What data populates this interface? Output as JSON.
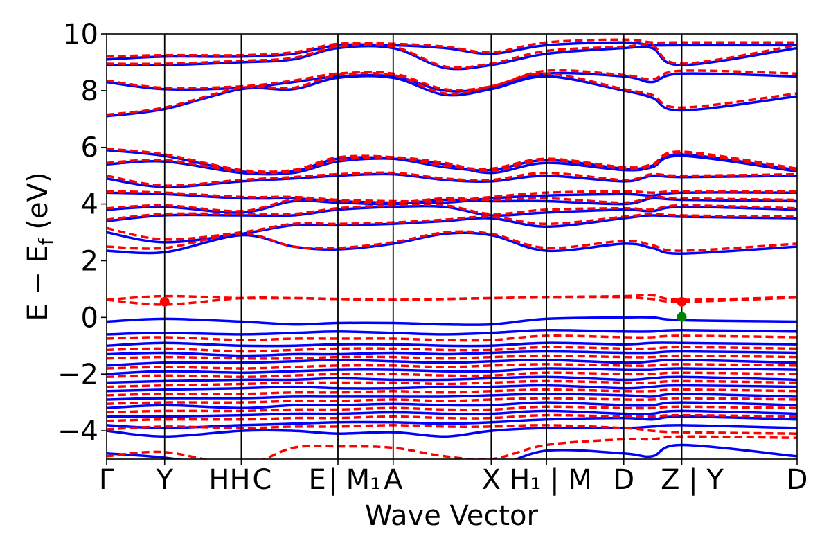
{
  "chart_data": {
    "type": "line",
    "xlabel": "Wave Vector",
    "ylabel_main": "E − E",
    "ylabel_sub": "f",
    "ylabel_unit": " (eV)",
    "ylim": [
      -5,
      10
    ],
    "yticks": [
      10,
      8,
      6,
      4,
      2,
      0,
      -2,
      -4
    ],
    "ytick_labels": [
      "10",
      "8",
      "6",
      "4",
      "2",
      "0",
      "−2",
      "−4"
    ],
    "grid": false,
    "kpath": [
      {
        "label": "Γ",
        "pos": 0.0
      },
      {
        "label": "Y",
        "pos": 0.084
      },
      {
        "label": "H|H",
        "pos": 0.195
      },
      {
        "label": "C",
        "pos": 0.195
      },
      {
        "label": "E|E",
        "pos": 0.335
      },
      {
        "label": "M1",
        "pos": 0.335
      },
      {
        "label": "A",
        "pos": 0.415
      },
      {
        "label": "X",
        "pos": 0.557
      },
      {
        "label": "H1|M",
        "pos": 0.637
      },
      {
        "label": "D",
        "pos": 0.749
      },
      {
        "label": "Z|Y",
        "pos": 0.833
      },
      {
        "label": "D",
        "pos": 1.0
      }
    ],
    "xtick_labels": [
      {
        "text": "Γ",
        "pos": 0.0
      },
      {
        "text": "Y",
        "pos": 0.084
      },
      {
        "text": "HH",
        "pos": 0.178
      },
      {
        "text": "C",
        "pos": 0.225
      },
      {
        "text": "E",
        "pos": 0.305
      },
      {
        "text": "|",
        "pos": 0.328
      },
      {
        "text": "M₁",
        "pos": 0.372
      },
      {
        "text": "A",
        "pos": 0.415
      },
      {
        "text": "X",
        "pos": 0.557
      },
      {
        "text": "H₁ | M",
        "pos": 0.643
      },
      {
        "text": "D",
        "pos": 0.749
      },
      {
        "text": "Z | Y",
        "pos": 0.848
      },
      {
        "text": "D",
        "pos": 1.0
      }
    ],
    "series": [
      {
        "style": "solid",
        "color": "#0000ff",
        "bands": [
          [
            -0.15,
            -0.05,
            -0.15,
            -0.25,
            -0.2,
            -0.2,
            -0.25,
            -0.25,
            -0.05,
            0.0,
            0.0,
            -0.1,
            -0.15
          ],
          [
            -0.6,
            -0.55,
            -0.6,
            -0.55,
            -0.5,
            -0.55,
            -0.6,
            -0.55,
            -0.45,
            -0.5,
            -0.5,
            -0.45,
            -0.5
          ],
          [
            -1.0,
            -0.9,
            -1.0,
            -1.0,
            -0.95,
            -0.95,
            -1.0,
            -1.0,
            -0.9,
            -0.95,
            -0.9,
            -0.9,
            -0.95
          ],
          [
            -1.3,
            -1.25,
            -1.35,
            -1.3,
            -1.3,
            -1.25,
            -1.3,
            -1.25,
            -1.2,
            -1.25,
            -1.25,
            -1.2,
            -1.25
          ],
          [
            -1.7,
            -1.6,
            -1.6,
            -1.55,
            -1.5,
            -1.55,
            -1.6,
            -1.55,
            -1.5,
            -1.6,
            -1.55,
            -1.5,
            -1.6
          ],
          [
            -2.0,
            -1.9,
            -1.95,
            -1.9,
            -1.85,
            -1.85,
            -1.9,
            -1.9,
            -1.8,
            -1.85,
            -1.85,
            -1.8,
            -1.85
          ],
          [
            -2.3,
            -2.25,
            -2.2,
            -2.2,
            -2.15,
            -2.2,
            -2.2,
            -2.15,
            -2.1,
            -2.2,
            -2.15,
            -2.1,
            -2.2
          ],
          [
            -2.6,
            -2.55,
            -2.5,
            -2.45,
            -2.5,
            -2.5,
            -2.45,
            -2.45,
            -2.4,
            -2.5,
            -2.45,
            -2.4,
            -2.45
          ],
          [
            -2.9,
            -2.85,
            -2.85,
            -2.8,
            -2.8,
            -2.8,
            -2.8,
            -2.75,
            -2.7,
            -2.75,
            -2.8,
            -2.7,
            -2.8
          ],
          [
            -3.2,
            -3.1,
            -3.2,
            -3.1,
            -3.1,
            -3.05,
            -3.1,
            -3.1,
            -3.0,
            -3.1,
            -3.1,
            -3.0,
            -3.1
          ],
          [
            -3.5,
            -3.5,
            -3.45,
            -3.4,
            -3.4,
            -3.35,
            -3.4,
            -3.4,
            -3.3,
            -3.4,
            -3.4,
            -3.3,
            -3.4
          ],
          [
            -3.8,
            -3.9,
            -3.8,
            -3.75,
            -3.7,
            -3.7,
            -3.75,
            -3.7,
            -3.6,
            -3.55,
            -3.6,
            -3.5,
            -3.6
          ],
          [
            -4.0,
            -4.2,
            -4.0,
            -4.0,
            -4.1,
            -4.05,
            -4.2,
            -4.0,
            -3.9,
            -3.9,
            -3.85,
            -3.8,
            -3.9
          ],
          [
            -4.8,
            -4.95,
            -5.3,
            -5.2,
            -5.1,
            -5.2,
            -5.25,
            -5.3,
            -4.7,
            -4.8,
            -4.9,
            -4.5,
            -4.9
          ],
          [
            2.35,
            2.3,
            2.9,
            2.5,
            2.4,
            2.6,
            2.95,
            2.9,
            2.35,
            2.6,
            2.45,
            2.25,
            2.5
          ],
          [
            3.0,
            2.65,
            2.95,
            3.25,
            3.25,
            3.3,
            3.4,
            3.5,
            3.2,
            3.5,
            3.6,
            3.55,
            3.5
          ],
          [
            3.4,
            3.6,
            3.6,
            3.6,
            3.8,
            3.9,
            3.9,
            3.6,
            3.7,
            3.8,
            3.75,
            3.9,
            3.8
          ],
          [
            3.8,
            3.9,
            3.7,
            4.1,
            4.05,
            4.0,
            4.15,
            4.1,
            4.1,
            4.0,
            4.2,
            4.15,
            4.1
          ],
          [
            4.4,
            4.35,
            4.2,
            4.2,
            4.1,
            4.05,
            4.05,
            4.2,
            4.3,
            4.35,
            4.3,
            4.4,
            4.4
          ],
          [
            4.9,
            4.6,
            4.8,
            4.9,
            5.0,
            5.05,
            4.85,
            4.8,
            5.0,
            4.8,
            5.0,
            4.95,
            5.0
          ],
          [
            5.4,
            5.5,
            5.1,
            5.1,
            5.5,
            5.6,
            5.4,
            5.1,
            5.45,
            5.2,
            5.3,
            5.7,
            5.15
          ],
          [
            5.9,
            5.7,
            5.15,
            5.15,
            5.6,
            5.6,
            5.3,
            5.2,
            5.55,
            5.25,
            5.35,
            5.75,
            5.2
          ],
          [
            7.1,
            7.35,
            8.05,
            8.05,
            8.45,
            8.45,
            7.85,
            8.05,
            8.5,
            8.0,
            7.75,
            7.3,
            7.8
          ],
          [
            8.3,
            8.05,
            8.1,
            8.3,
            8.5,
            8.5,
            8.0,
            8.1,
            8.6,
            8.5,
            8.3,
            8.6,
            8.5
          ],
          [
            8.9,
            8.9,
            9.0,
            9.1,
            9.5,
            9.5,
            8.8,
            8.9,
            9.3,
            9.5,
            9.5,
            8.9,
            9.5
          ],
          [
            9.1,
            9.2,
            9.2,
            9.3,
            9.6,
            9.6,
            9.5,
            9.3,
            9.6,
            9.7,
            9.6,
            9.6,
            9.6
          ]
        ]
      },
      {
        "style": "dashed",
        "color": "#ff0000",
        "bands": [
          [
            0.62,
            0.75,
            0.68,
            0.68,
            0.65,
            0.62,
            0.65,
            0.68,
            0.72,
            0.75,
            0.78,
            0.62,
            0.72
          ],
          [
            0.62,
            0.45,
            0.68,
            0.68,
            0.65,
            0.62,
            0.65,
            0.68,
            0.7,
            0.7,
            0.65,
            0.55,
            0.7
          ],
          [
            -0.75,
            -0.7,
            -0.8,
            -0.75,
            -0.75,
            -0.75,
            -0.8,
            -0.8,
            -0.65,
            -0.7,
            -0.7,
            -0.65,
            -0.7
          ],
          [
            -1.15,
            -1.1,
            -1.2,
            -1.15,
            -1.1,
            -1.1,
            -1.15,
            -1.15,
            -1.05,
            -1.1,
            -1.1,
            -1.05,
            -1.1
          ],
          [
            -1.45,
            -1.4,
            -1.45,
            -1.45,
            -1.4,
            -1.4,
            -1.45,
            -1.4,
            -1.35,
            -1.4,
            -1.4,
            -1.35,
            -1.4
          ],
          [
            -1.8,
            -1.75,
            -1.8,
            -1.75,
            -1.7,
            -1.7,
            -1.75,
            -1.7,
            -1.65,
            -1.7,
            -1.7,
            -1.65,
            -1.7
          ],
          [
            -2.1,
            -2.05,
            -2.1,
            -2.05,
            -2.0,
            -2.0,
            -2.05,
            -2.05,
            -1.95,
            -2.0,
            -2.0,
            -1.95,
            -2.0
          ],
          [
            -2.45,
            -2.4,
            -2.35,
            -2.3,
            -2.3,
            -2.3,
            -2.35,
            -2.3,
            -2.25,
            -2.3,
            -2.3,
            -2.25,
            -2.3
          ],
          [
            -2.75,
            -2.7,
            -2.7,
            -2.65,
            -2.65,
            -2.6,
            -2.65,
            -2.6,
            -2.55,
            -2.6,
            -2.6,
            -2.55,
            -2.6
          ],
          [
            -3.05,
            -3.0,
            -3.0,
            -2.95,
            -2.95,
            -2.9,
            -2.95,
            -2.9,
            -2.85,
            -2.9,
            -2.9,
            -2.85,
            -2.9
          ],
          [
            -3.35,
            -3.3,
            -3.3,
            -3.25,
            -3.25,
            -3.2,
            -3.25,
            -3.25,
            -3.15,
            -3.2,
            -3.2,
            -3.15,
            -3.2
          ],
          [
            -3.65,
            -3.6,
            -3.6,
            -3.55,
            -3.55,
            -3.5,
            -3.55,
            -3.55,
            -3.45,
            -3.5,
            -3.5,
            -3.45,
            -3.5
          ],
          [
            -3.95,
            -3.85,
            -3.9,
            -3.85,
            -3.85,
            -3.8,
            -3.85,
            -3.85,
            -3.8,
            -3.9,
            -4.0,
            -4.05,
            -4.1
          ],
          [
            -4.9,
            -4.75,
            -5.2,
            -4.6,
            -4.55,
            -4.6,
            -4.9,
            -5.0,
            -4.5,
            -4.3,
            -4.3,
            -4.2,
            -4.25
          ],
          [
            2.5,
            2.45,
            2.95,
            2.5,
            2.45,
            2.65,
            3.0,
            2.95,
            2.45,
            2.7,
            2.55,
            2.35,
            2.6
          ],
          [
            3.15,
            2.75,
            3.0,
            3.3,
            3.3,
            3.35,
            3.45,
            3.55,
            3.3,
            3.55,
            3.65,
            3.6,
            3.55
          ],
          [
            3.45,
            3.65,
            3.65,
            3.65,
            3.85,
            3.95,
            3.95,
            3.65,
            3.8,
            3.85,
            3.8,
            3.95,
            3.85
          ],
          [
            3.85,
            3.95,
            3.75,
            4.15,
            4.1,
            4.05,
            4.2,
            4.15,
            4.2,
            4.05,
            4.25,
            4.2,
            4.15
          ],
          [
            4.45,
            4.4,
            4.25,
            4.25,
            4.15,
            4.1,
            4.1,
            4.25,
            4.4,
            4.45,
            4.4,
            4.45,
            4.45
          ],
          [
            5.0,
            4.65,
            4.85,
            4.95,
            5.05,
            5.1,
            4.9,
            4.85,
            5.1,
            4.85,
            5.05,
            5.0,
            5.05
          ],
          [
            5.45,
            5.55,
            5.15,
            5.15,
            5.55,
            5.65,
            5.45,
            5.15,
            5.55,
            5.25,
            5.35,
            5.8,
            5.2
          ],
          [
            5.95,
            5.75,
            5.2,
            5.2,
            5.65,
            5.65,
            5.35,
            5.25,
            5.6,
            5.3,
            5.4,
            5.85,
            5.25
          ],
          [
            7.15,
            7.4,
            8.1,
            8.1,
            8.55,
            8.55,
            7.9,
            8.15,
            8.6,
            8.05,
            7.85,
            7.4,
            7.9
          ],
          [
            8.35,
            8.1,
            8.15,
            8.35,
            8.6,
            8.6,
            8.05,
            8.15,
            8.7,
            8.55,
            8.4,
            8.7,
            8.6
          ],
          [
            8.95,
            8.95,
            9.05,
            9.15,
            9.55,
            9.55,
            8.85,
            8.95,
            9.4,
            9.55,
            9.6,
            8.95,
            9.6
          ],
          [
            9.2,
            9.25,
            9.25,
            9.35,
            9.65,
            9.65,
            9.55,
            9.35,
            9.7,
            9.8,
            9.7,
            9.7,
            9.7
          ]
        ]
      }
    ],
    "band_x": [
      0.0,
      0.084,
      0.195,
      0.27,
      0.335,
      0.415,
      0.49,
      0.557,
      0.637,
      0.749,
      0.79,
      0.833,
      1.0
    ],
    "markers": [
      {
        "x": 0.084,
        "y": 0.55,
        "color": "#ff0000"
      },
      {
        "x": 0.833,
        "y": 0.55,
        "color": "#ff0000"
      },
      {
        "x": 0.833,
        "y": 0.02,
        "color": "#008000"
      }
    ]
  }
}
